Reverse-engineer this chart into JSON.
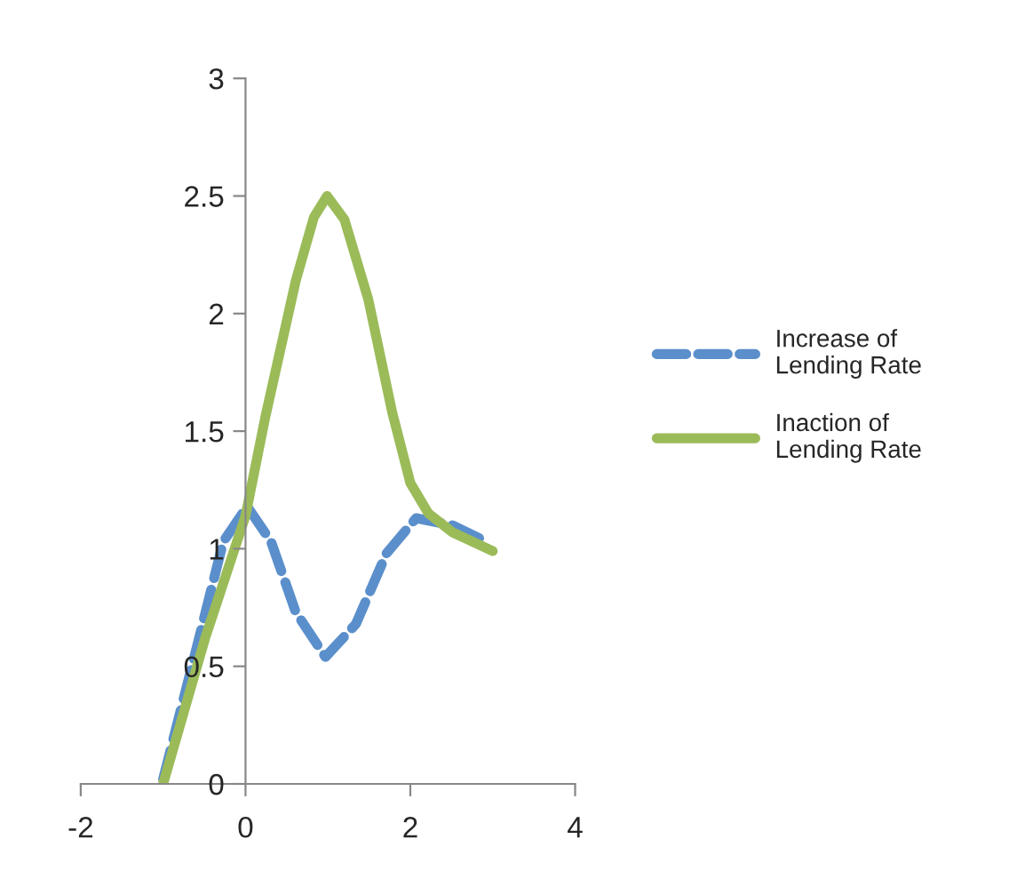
{
  "chart_data": {
    "type": "line",
    "xlim": [
      -2,
      4
    ],
    "xticks": [
      -2,
      0,
      2,
      4
    ],
    "ylim": [
      0,
      3
    ],
    "yticks": [
      0,
      0.5,
      1,
      1.5,
      2,
      2.5,
      3
    ],
    "grid": false,
    "legend": "right",
    "marker": "none",
    "series": [
      {
        "name": "Increase of Lending Rate",
        "color": "#5b8fcb",
        "line_style": "dashed",
        "x": [
          -1,
          -0.6,
          -0.27,
          0.02,
          0.31,
          0.61,
          0.97,
          1.34,
          1.71,
          2.07,
          2.51,
          2.92
        ],
        "values": [
          0.02,
          0.57,
          1.03,
          1.18,
          1.03,
          0.73,
          0.54,
          0.68,
          0.98,
          1.13,
          1.1,
          1.03
        ]
      },
      {
        "name": "Inaction of Lending Rate",
        "color": "#9bbb59",
        "line_style": "solid",
        "x": [
          -1,
          -0.49,
          0,
          0.24,
          0.61,
          0.83,
          0.99,
          1.2,
          1.49,
          1.78,
          2.0,
          2.22,
          2.51,
          3.0
        ],
        "values": [
          0,
          0.62,
          1.14,
          1.56,
          2.14,
          2.41,
          2.5,
          2.4,
          2.06,
          1.58,
          1.28,
          1.15,
          1.07,
          0.99
        ]
      }
    ]
  }
}
